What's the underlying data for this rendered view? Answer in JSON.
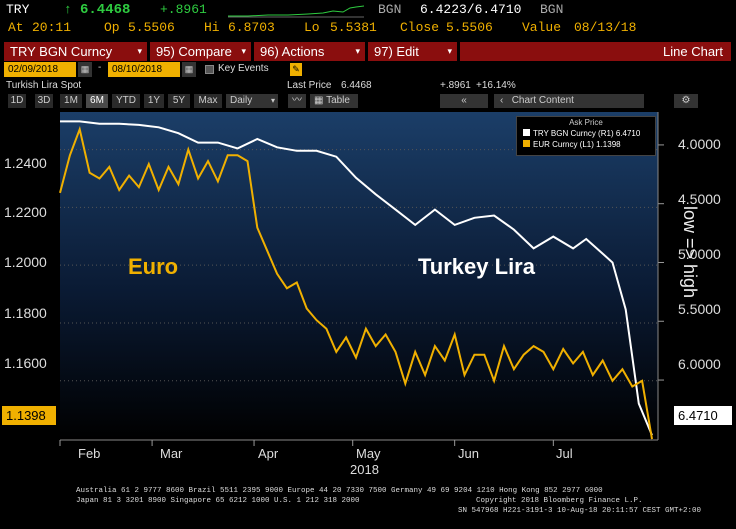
{
  "header": {
    "ticker": "TRY",
    "arrow": "↑",
    "last": "6.4468",
    "change": "+.8961",
    "currency": "BGN",
    "bid_ask": "6.4223/6.4710",
    "currency2": "BGN",
    "at_label": "At",
    "at_time": "20:11",
    "op_label": "Op",
    "op": "5.5506",
    "hi_label": "Hi",
    "hi": "6.8703",
    "lo_label": "Lo",
    "lo": "5.5381",
    "close_label": "Close",
    "close": "5.5506",
    "value_label": "Value",
    "value_date": "08/13/18"
  },
  "toolbar": {
    "security": "TRY BGN Curncy",
    "compare": "95) Compare",
    "actions": "96) Actions",
    "edit": "97) Edit",
    "view": "Line Chart"
  },
  "range": {
    "start": "02/09/2018",
    "end": "08/10/2018",
    "key_events": "Key Events"
  },
  "info": {
    "title": "Turkish Lira Spot",
    "last_price_label": "Last Price",
    "last_price": "6.4468",
    "change": "+.8961",
    "change_pct": "+16.14%"
  },
  "periods": [
    "1D",
    "3D",
    "1M",
    "6M",
    "YTD",
    "1Y",
    "5Y",
    "Max"
  ],
  "selected_period": "6M",
  "frequency": "Daily",
  "table_label": "Table",
  "chart_content": "Chart Content",
  "chart_data": {
    "type": "line",
    "legend_title": "Ask Price",
    "legend_position": "top-right",
    "series": [
      {
        "name": "TRY BGN Curncy (R1) 6.4710",
        "axis": "right-inverted",
        "color": "#ffffff",
        "last": "6.4710",
        "x": [
          0,
          6,
          12,
          18,
          24,
          30,
          36,
          42,
          48,
          54,
          60,
          66,
          72,
          78,
          84,
          90,
          96,
          102,
          108,
          114,
          120,
          126,
          132,
          138,
          144,
          150,
          156,
          160,
          164,
          168,
          172,
          176,
          180
        ],
        "values": [
          3.8,
          3.8,
          3.82,
          3.82,
          3.83,
          3.85,
          3.9,
          3.98,
          3.98,
          4.03,
          3.95,
          4.02,
          4.05,
          4.05,
          4.1,
          4.28,
          4.42,
          4.55,
          4.68,
          4.55,
          4.68,
          4.62,
          4.6,
          4.72,
          4.88,
          4.78,
          4.88,
          4.8,
          4.9,
          5.0,
          5.4,
          6.2,
          6.47
        ]
      },
      {
        "name": "EUR Curncy (L1) 1.1398",
        "axis": "left",
        "color": "#f0b000",
        "last": "1.1398",
        "x": [
          0,
          3,
          6,
          9,
          12,
          15,
          18,
          21,
          24,
          27,
          30,
          33,
          36,
          39,
          42,
          45,
          48,
          51,
          54,
          57,
          60,
          63,
          66,
          69,
          72,
          75,
          78,
          81,
          84,
          87,
          90,
          93,
          96,
          99,
          102,
          105,
          108,
          111,
          114,
          117,
          120,
          123,
          126,
          129,
          132,
          135,
          138,
          141,
          144,
          147,
          150,
          153,
          156,
          159,
          162,
          165,
          168,
          171,
          174,
          177,
          180
        ],
        "values": [
          1.225,
          1.238,
          1.247,
          1.232,
          1.23,
          1.234,
          1.226,
          1.231,
          1.227,
          1.235,
          1.226,
          1.234,
          1.228,
          1.24,
          1.23,
          1.236,
          1.229,
          1.238,
          1.238,
          1.236,
          1.213,
          1.205,
          1.197,
          1.192,
          1.194,
          1.185,
          1.181,
          1.178,
          1.17,
          1.175,
          1.168,
          1.178,
          1.172,
          1.176,
          1.17,
          1.159,
          1.17,
          1.162,
          1.172,
          1.167,
          1.176,
          1.162,
          1.169,
          1.169,
          1.16,
          1.172,
          1.164,
          1.169,
          1.172,
          1.17,
          1.164,
          1.171,
          1.166,
          1.17,
          1.162,
          1.167,
          1.16,
          1.164,
          1.158,
          1.16,
          1.1398
        ]
      }
    ],
    "left_axis": {
      "ticks": [
        "1.2400",
        "1.2200",
        "1.2000",
        "1.1800",
        "1.1600"
      ],
      "tick_values": [
        1.24,
        1.22,
        1.2,
        1.18,
        1.16
      ],
      "ylim": [
        1.1395,
        1.253
      ]
    },
    "right_axis": {
      "ticks": [
        "4.0000",
        "4.5000",
        "5.0000",
        "5.5000",
        "6.0000"
      ],
      "tick_values": [
        4.0,
        4.5,
        5.0,
        5.5,
        6.0
      ],
      "ylim": [
        3.72,
        6.51
      ],
      "inverted": true
    },
    "x_ticks": [
      "Feb",
      "Mar",
      "Apr",
      "May",
      "Jun",
      "Jul"
    ],
    "x_tick_days": [
      0,
      28,
      59,
      89,
      120,
      150
    ],
    "year_label": "2018",
    "current_left": "1.1398",
    "current_right": "6.4710",
    "annotations": {
      "left": "Euro",
      "right": "Turkey Lira",
      "side": "low => high"
    }
  },
  "footer": {
    "line1": "Australia 61 2 9777 8600 Brazil 5511 2395 9000 Europe 44 20 7330 7500 Germany 49 69 9204 1210 Hong Kong 852 2977 6000",
    "line2a": "Japan 81 3 3201 8900     Singapore 65 6212 1000     U.S. 1 212 318 2000",
    "line2b": "Copyright 2018 Bloomberg Finance L.P.",
    "line3": "SN 547968 H221-3191-3 10-Aug-18 20:11:57 CEST GMT+2:00"
  }
}
